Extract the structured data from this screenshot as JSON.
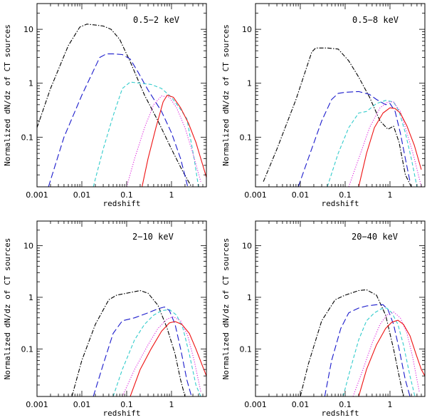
{
  "chart_data": [
    {
      "type": "line",
      "panel_label": "0.5−2 keV",
      "xlabel": "redshift",
      "ylabel": "Normalized dN/dz of CT sources",
      "xscale": "log",
      "yscale": "log",
      "xlim": [
        0.001,
        6.0
      ],
      "ylim": [
        0.012,
        30
      ],
      "xticks": [
        0.001,
        0.01,
        0.1,
        1
      ],
      "xtick_labels": [
        "0.001",
        "0.01",
        "0.1",
        "1"
      ],
      "yticks": [
        0.1,
        1,
        10
      ],
      "ytick_labels": [
        "0.1",
        "1",
        "10"
      ],
      "series": [
        {
          "name": "black-dot-dash",
          "color": "#000000",
          "dash": "6,2,1.5,2",
          "x": [
            0.001,
            0.002,
            0.005,
            0.009,
            0.013,
            0.02,
            0.03,
            0.045,
            0.07,
            0.12,
            0.25,
            0.5,
            1.0,
            1.7,
            2.8
          ],
          "y": [
            0.15,
            0.8,
            5.0,
            11.0,
            12.5,
            12.0,
            11.5,
            10.0,
            6.5,
            2.5,
            0.6,
            0.2,
            0.06,
            0.025,
            0.012
          ]
        },
        {
          "name": "blue-long-dash",
          "color": "#1a1acc",
          "dash": "9,4",
          "x": [
            0.0018,
            0.004,
            0.01,
            0.025,
            0.035,
            0.05,
            0.08,
            0.12,
            0.18,
            0.3,
            0.6,
            1.0,
            1.6,
            2.3
          ],
          "y": [
            0.012,
            0.1,
            0.6,
            3.0,
            3.5,
            3.5,
            3.4,
            2.8,
            1.6,
            0.75,
            0.3,
            0.12,
            0.04,
            0.012
          ]
        },
        {
          "name": "cyan-dash",
          "color": "#33cccc",
          "dash": "5,3",
          "x": [
            0.018,
            0.03,
            0.05,
            0.08,
            0.12,
            0.2,
            0.35,
            0.6,
            1.0,
            1.5,
            2.2,
            3.2,
            4.0
          ],
          "y": [
            0.012,
            0.06,
            0.25,
            0.8,
            1.05,
            1.0,
            0.95,
            0.8,
            0.55,
            0.35,
            0.22,
            0.04,
            0.012
          ]
        },
        {
          "name": "magenta-dot",
          "color": "#dd22dd",
          "dash": "1.2,2",
          "x": [
            0.1,
            0.15,
            0.25,
            0.4,
            0.6,
            0.9,
            1.3,
            2.0,
            3.0,
            4.5
          ],
          "y": [
            0.012,
            0.04,
            0.15,
            0.4,
            0.58,
            0.55,
            0.35,
            0.15,
            0.05,
            0.015
          ]
        },
        {
          "name": "red-solid",
          "color": "#ee1111",
          "dash": "",
          "x": [
            0.22,
            0.3,
            0.45,
            0.65,
            0.8,
            1.1,
            1.6,
            2.4,
            3.5,
            5.0,
            6.0
          ],
          "y": [
            0.012,
            0.04,
            0.15,
            0.45,
            0.6,
            0.55,
            0.35,
            0.18,
            0.08,
            0.03,
            0.018
          ]
        }
      ]
    },
    {
      "type": "line",
      "panel_label": "0.5−8 keV",
      "xlabel": "redshift",
      "ylabel": "Normalized dN/dz of CT sources",
      "xscale": "log",
      "yscale": "log",
      "xlim": [
        0.001,
        6.0
      ],
      "ylim": [
        0.012,
        30
      ],
      "xticks": [
        0.001,
        0.01,
        0.1,
        1
      ],
      "xtick_labels": [
        "0.001",
        "0.01",
        "0.1",
        "1"
      ],
      "yticks": [
        0.1,
        1,
        10
      ],
      "ytick_labels": [
        "0.1",
        "1",
        "10"
      ],
      "series": [
        {
          "name": "black-dot-dash",
          "color": "#000000",
          "dash": "6,2,1.5,2",
          "x": [
            0.0015,
            0.003,
            0.008,
            0.018,
            0.022,
            0.04,
            0.07,
            0.12,
            0.2,
            0.35,
            0.6,
            0.9,
            1.2,
            1.6,
            2.2,
            3.0
          ],
          "y": [
            0.015,
            0.06,
            0.5,
            3.8,
            4.5,
            4.5,
            4.3,
            2.6,
            1.3,
            0.55,
            0.2,
            0.14,
            0.16,
            0.08,
            0.02,
            0.012
          ]
        },
        {
          "name": "blue-long-dash",
          "color": "#1a1acc",
          "dash": "9,4",
          "x": [
            0.009,
            0.015,
            0.03,
            0.05,
            0.07,
            0.1,
            0.2,
            0.35,
            0.5,
            0.8,
            1.0,
            1.3,
            1.7,
            2.2,
            2.8
          ],
          "y": [
            0.012,
            0.04,
            0.2,
            0.5,
            0.65,
            0.68,
            0.7,
            0.62,
            0.5,
            0.4,
            0.42,
            0.3,
            0.12,
            0.04,
            0.015
          ]
        },
        {
          "name": "cyan-dash",
          "color": "#33cccc",
          "dash": "5,3",
          "x": [
            0.04,
            0.07,
            0.12,
            0.2,
            0.3,
            0.5,
            0.8,
            1.2,
            1.6,
            2.2,
            3.0,
            4.0
          ],
          "y": [
            0.012,
            0.05,
            0.15,
            0.28,
            0.3,
            0.42,
            0.48,
            0.45,
            0.3,
            0.12,
            0.04,
            0.012
          ]
        },
        {
          "name": "magenta-dot",
          "color": "#dd22dd",
          "dash": "1.2,2",
          "x": [
            0.12,
            0.2,
            0.35,
            0.6,
            0.9,
            1.2,
            1.7,
            2.4,
            3.5,
            5.0
          ],
          "y": [
            0.012,
            0.04,
            0.15,
            0.35,
            0.45,
            0.45,
            0.3,
            0.12,
            0.04,
            0.012
          ]
        },
        {
          "name": "red-solid",
          "color": "#ee1111",
          "dash": "",
          "x": [
            0.2,
            0.3,
            0.45,
            0.7,
            1.0,
            1.3,
            1.7,
            2.4,
            3.5,
            5.0
          ],
          "y": [
            0.012,
            0.05,
            0.15,
            0.28,
            0.35,
            0.34,
            0.28,
            0.16,
            0.07,
            0.025
          ]
        }
      ]
    },
    {
      "type": "line",
      "panel_label": "2−10 keV",
      "xlabel": "redshift",
      "ylabel": "Normalized dN/dz of CT sources",
      "xscale": "log",
      "yscale": "log",
      "xlim": [
        0.001,
        6.0
      ],
      "ylim": [
        0.012,
        30
      ],
      "xticks": [
        0.001,
        0.01,
        0.1,
        1
      ],
      "xtick_labels": [
        "0.001",
        "0.01",
        "0.1",
        "1"
      ],
      "yticks": [
        0.1,
        1,
        10
      ],
      "ytick_labels": [
        "0.1",
        "1",
        "10"
      ],
      "series": [
        {
          "name": "black-dot-dash",
          "color": "#000000",
          "dash": "6,2,1.5,2",
          "x": [
            0.006,
            0.01,
            0.02,
            0.04,
            0.06,
            0.1,
            0.2,
            0.3,
            0.5,
            0.8,
            1.2,
            1.6,
            2.0
          ],
          "y": [
            0.012,
            0.06,
            0.3,
            0.9,
            1.1,
            1.2,
            1.35,
            1.2,
            0.7,
            0.25,
            0.08,
            0.025,
            0.012
          ]
        },
        {
          "name": "blue-long-dash",
          "color": "#1a1acc",
          "dash": "9,4",
          "x": [
            0.018,
            0.03,
            0.05,
            0.08,
            0.15,
            0.3,
            0.5,
            0.7,
            0.9,
            1.2,
            1.6,
            2.2,
            2.8
          ],
          "y": [
            0.012,
            0.05,
            0.2,
            0.35,
            0.4,
            0.5,
            0.6,
            0.65,
            0.55,
            0.3,
            0.1,
            0.025,
            0.012
          ]
        },
        {
          "name": "cyan-dash",
          "color": "#33cccc",
          "dash": "5,3",
          "x": [
            0.05,
            0.08,
            0.15,
            0.25,
            0.4,
            0.6,
            0.9,
            1.3,
            1.8,
            2.5,
            3.5,
            4.5
          ],
          "y": [
            0.012,
            0.04,
            0.15,
            0.3,
            0.45,
            0.55,
            0.58,
            0.45,
            0.25,
            0.08,
            0.02,
            0.012
          ]
        },
        {
          "name": "magenta-dot",
          "color": "#dd22dd",
          "dash": "1.2,2",
          "x": [
            0.08,
            0.15,
            0.3,
            0.5,
            0.8,
            1.1,
            1.6,
            2.3,
            3.2,
            4.5
          ],
          "y": [
            0.012,
            0.04,
            0.12,
            0.25,
            0.38,
            0.42,
            0.35,
            0.18,
            0.06,
            0.015
          ]
        },
        {
          "name": "red-solid",
          "color": "#ee1111",
          "dash": "",
          "x": [
            0.12,
            0.2,
            0.35,
            0.6,
            0.9,
            1.2,
            1.7,
            2.5,
            3.5,
            5.0,
            6.0
          ],
          "y": [
            0.012,
            0.04,
            0.1,
            0.22,
            0.32,
            0.34,
            0.3,
            0.2,
            0.1,
            0.045,
            0.03
          ]
        }
      ]
    },
    {
      "type": "line",
      "panel_label": "20−40 keV",
      "xlabel": "redshift",
      "ylabel": "Normalized dN/dz of CT sources",
      "xscale": "log",
      "yscale": "log",
      "xlim": [
        0.001,
        6.0
      ],
      "ylim": [
        0.012,
        30
      ],
      "xticks": [
        0.001,
        0.01,
        0.1,
        1
      ],
      "xtick_labels": [
        "0.001",
        "0.01",
        "0.1",
        "1"
      ],
      "yticks": [
        0.1,
        1,
        10
      ],
      "ytick_labels": [
        "0.1",
        "1",
        "10"
      ],
      "series": [
        {
          "name": "black-dot-dash",
          "color": "#000000",
          "dash": "6,2,1.5,2",
          "x": [
            0.01,
            0.015,
            0.03,
            0.06,
            0.1,
            0.2,
            0.3,
            0.5,
            0.8,
            1.2,
            1.6,
            2.0
          ],
          "y": [
            0.012,
            0.05,
            0.35,
            0.9,
            1.1,
            1.35,
            1.4,
            1.1,
            0.45,
            0.1,
            0.03,
            0.012
          ]
        },
        {
          "name": "blue-long-dash",
          "color": "#1a1acc",
          "dash": "9,4",
          "x": [
            0.035,
            0.05,
            0.08,
            0.12,
            0.2,
            0.3,
            0.5,
            0.7,
            0.9,
            1.2,
            1.6,
            2.2,
            2.8
          ],
          "y": [
            0.012,
            0.06,
            0.25,
            0.5,
            0.62,
            0.68,
            0.72,
            0.72,
            0.58,
            0.3,
            0.1,
            0.025,
            0.012
          ]
        },
        {
          "name": "cyan-dash",
          "color": "#33cccc",
          "dash": "5,3",
          "x": [
            0.09,
            0.13,
            0.2,
            0.3,
            0.45,
            0.65,
            0.85,
            1.1,
            1.5,
            2.0,
            2.8,
            3.6
          ],
          "y": [
            0.012,
            0.04,
            0.15,
            0.35,
            0.5,
            0.6,
            0.62,
            0.5,
            0.3,
            0.12,
            0.03,
            0.012
          ]
        },
        {
          "name": "magenta-dot",
          "color": "#dd22dd",
          "dash": "1.2,2",
          "x": [
            0.15,
            0.25,
            0.4,
            0.6,
            0.85,
            1.2,
            1.7,
            2.4,
            3.2,
            4.5
          ],
          "y": [
            0.012,
            0.04,
            0.13,
            0.3,
            0.45,
            0.52,
            0.4,
            0.2,
            0.07,
            0.015
          ]
        },
        {
          "name": "red-solid",
          "color": "#ee1111",
          "dash": "",
          "x": [
            0.2,
            0.3,
            0.5,
            0.8,
            1.1,
            1.5,
            2.0,
            2.8,
            3.8,
            5.0,
            6.0
          ],
          "y": [
            0.012,
            0.04,
            0.12,
            0.25,
            0.33,
            0.36,
            0.3,
            0.18,
            0.08,
            0.04,
            0.03
          ]
        }
      ]
    }
  ]
}
